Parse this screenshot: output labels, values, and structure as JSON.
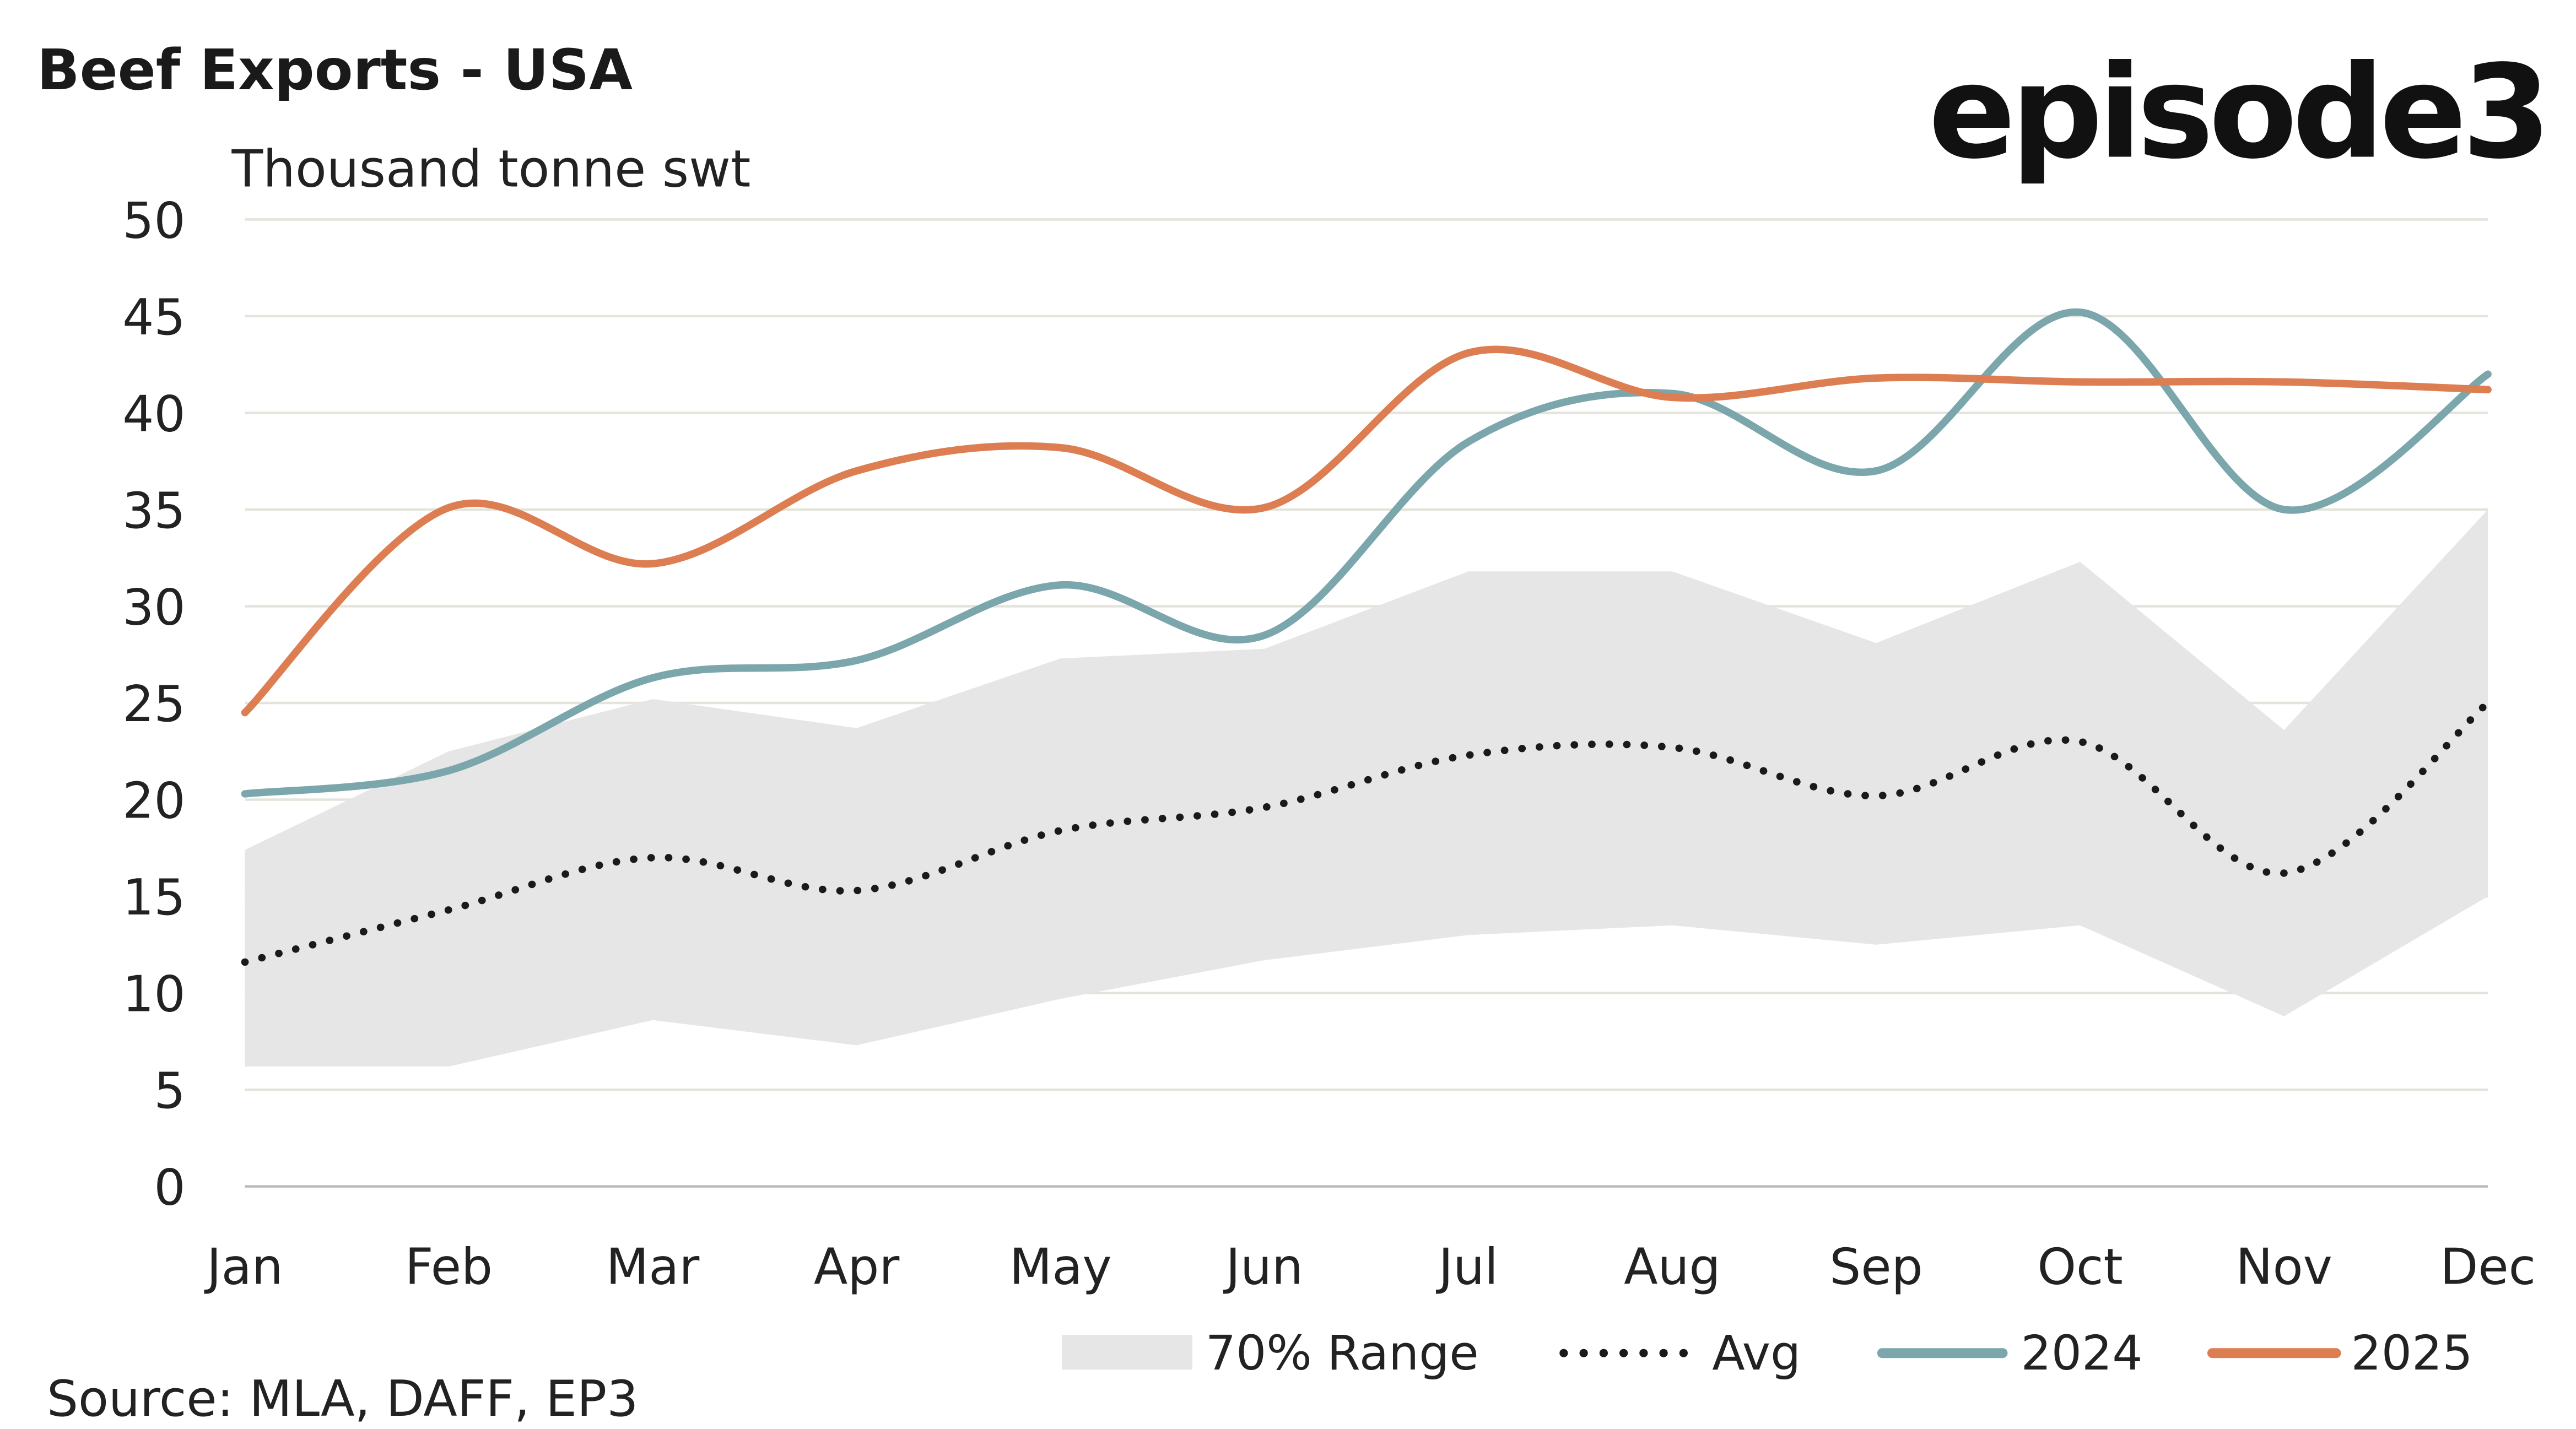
{
  "title": "Beef Exports - USA",
  "logo_text": "episode3",
  "source": "Source: MLA, DAFF, EP3",
  "chart_data": {
    "type": "line",
    "title": "Beef Exports - USA",
    "ylabel": "Thousand tonne swt",
    "xlabel": "",
    "ylim": [
      0,
      50
    ],
    "yticks": [
      0,
      5,
      10,
      15,
      20,
      25,
      30,
      35,
      40,
      45,
      50
    ],
    "grid": true,
    "legend_position": "bottom-right",
    "categories": [
      "Jan",
      "Feb",
      "Mar",
      "Apr",
      "May",
      "Jun",
      "Jul",
      "Aug",
      "Sep",
      "Oct",
      "Nov",
      "Dec"
    ],
    "range": {
      "name": "70% Range",
      "color": "#e6e6e6",
      "lower": [
        6.2,
        6.2,
        8.6,
        7.3,
        9.7,
        11.7,
        13.0,
        13.5,
        12.5,
        13.5,
        8.8,
        15.0
      ],
      "upper": [
        17.4,
        22.5,
        25.2,
        23.7,
        27.3,
        27.8,
        31.8,
        31.8,
        28.1,
        32.3,
        23.6,
        35.0
      ]
    },
    "series": [
      {
        "name": "Avg",
        "color": "#1a1a1a",
        "style": "dotted",
        "values": [
          11.6,
          14.3,
          17.0,
          15.3,
          18.4,
          19.6,
          22.3,
          22.7,
          20.2,
          23.0,
          16.2,
          25.0
        ]
      },
      {
        "name": "2024",
        "color": "#7aa6ac",
        "style": "solid",
        "values": [
          20.3,
          21.5,
          26.3,
          27.2,
          31.1,
          28.5,
          38.5,
          41.0,
          37.0,
          45.2,
          35.0,
          42.0
        ]
      },
      {
        "name": "2025",
        "color": "#dd7e52",
        "style": "solid",
        "values": [
          24.5,
          35.1,
          32.2,
          37.0,
          38.2,
          35.1,
          43.1,
          40.8,
          41.8,
          41.6,
          41.6,
          41.2
        ]
      }
    ]
  }
}
